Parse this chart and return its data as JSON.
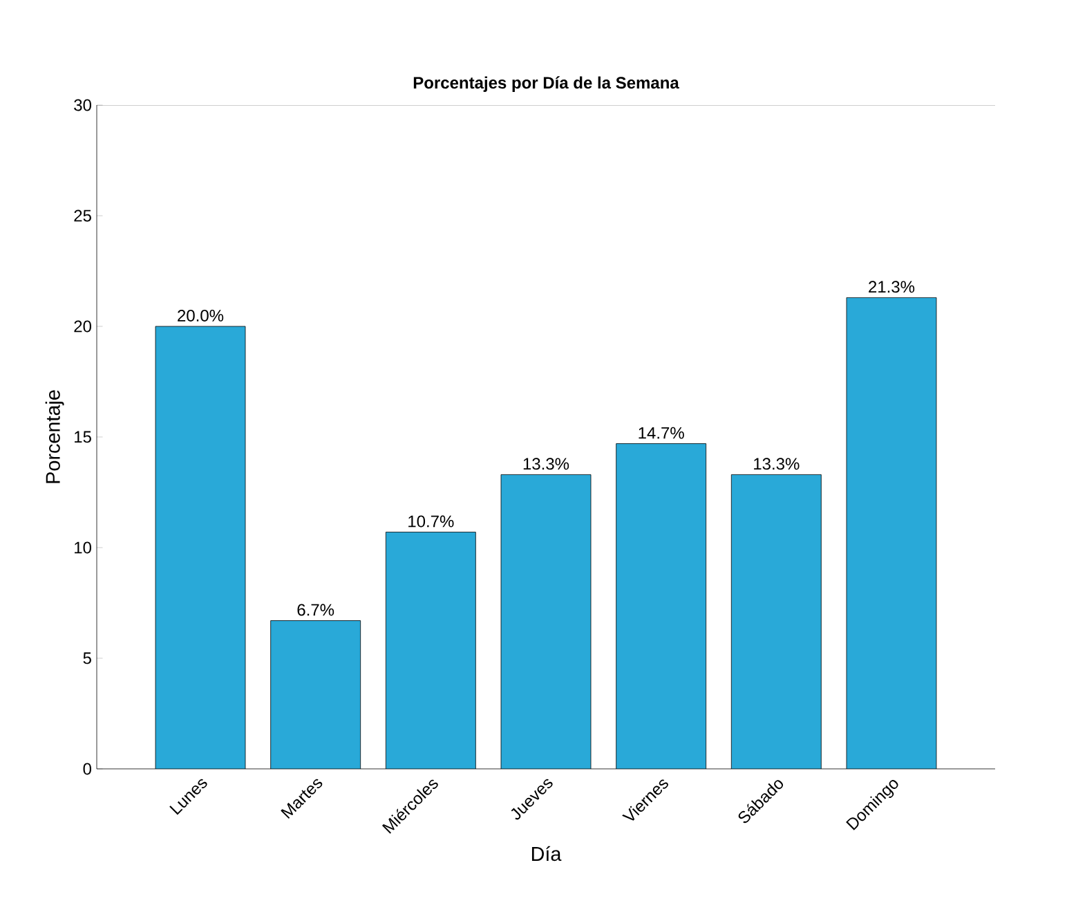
{
  "chart_data": {
    "type": "bar",
    "title": "Porcentajes por Día de la Semana",
    "xlabel": "Día",
    "ylabel": "Porcentaje",
    "categories": [
      "Lunes",
      "Martes",
      "Miércoles",
      "Jueves",
      "Viernes",
      "Sábado",
      "Domingo"
    ],
    "values": [
      20.0,
      6.7,
      10.7,
      13.3,
      14.7,
      13.3,
      21.3
    ],
    "value_labels": [
      "20.0%",
      "6.7%",
      "10.7%",
      "13.3%",
      "14.7%",
      "13.3%",
      "21.3%"
    ],
    "color": "#29a9d8",
    "ylim": [
      0,
      30
    ],
    "yticks": [
      0,
      5,
      10,
      15,
      20,
      25,
      30
    ],
    "grid": false
  }
}
